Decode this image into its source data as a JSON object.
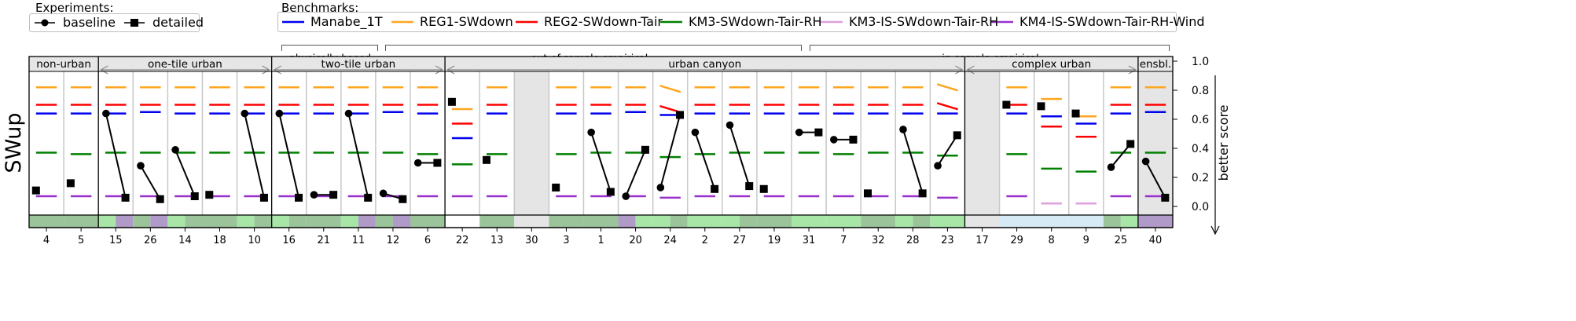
{
  "chart_data": {
    "type": "scatter",
    "ylabel": "SWup",
    "score_label": "better score",
    "ylim": [
      0,
      1
    ],
    "yticks": [
      "0.0",
      "0.2",
      "0.4",
      "0.6",
      "0.8",
      "1.0"
    ],
    "legend_experiments": {
      "title": "Experiments:",
      "items": [
        {
          "label": "baseline",
          "marker": "circle"
        },
        {
          "label": "detailed",
          "marker": "square"
        }
      ]
    },
    "legend_benchmarks": {
      "title": "Benchmarks:",
      "items": [
        {
          "label": "Manabe_1T",
          "color": "#0000ee"
        },
        {
          "label": "REG1-SWdown",
          "color": "#ffa520"
        },
        {
          "label": "REG2-SWdown-Tair",
          "color": "#ff0000"
        },
        {
          "label": "KM3-SWdown-Tair-RH",
          "color": "#008000"
        },
        {
          "label": "KM3-IS-SWdown-Tair-RH",
          "color": "#dda0dd"
        },
        {
          "label": "KM4-IS-SWdown-Tair-RH-Wind",
          "color": "#9932cc"
        }
      ],
      "groups": [
        "physically-based",
        "out-of-sample empirical",
        "in-sample empirical"
      ]
    },
    "categories": [
      {
        "name": "non-urban",
        "sites": [
          {
            "id": "4",
            "baseline": null,
            "detailed": 0.11,
            "bench": [
              0.64,
              0.82,
              0.7,
              0.37,
              null,
              0.07
            ],
            "strip": [
              "#9bc49b"
            ]
          },
          {
            "id": "5",
            "baseline": null,
            "detailed": 0.16,
            "bench": [
              0.64,
              0.82,
              0.7,
              0.36,
              null,
              0.07
            ],
            "strip": [
              "#9bc49b"
            ]
          }
        ]
      },
      {
        "name": "one-tile urban",
        "sites": [
          {
            "id": "15",
            "baseline": 0.64,
            "detailed": 0.06,
            "bench": [
              0.64,
              0.82,
              0.7,
              0.37,
              null,
              0.07
            ],
            "strip": [
              "#a8e6a8",
              "#b09ac8"
            ]
          },
          {
            "id": "26",
            "baseline": 0.28,
            "detailed": 0.05,
            "bench": [
              0.65,
              0.82,
              0.7,
              0.37,
              null,
              0.07
            ],
            "strip": [
              "#9bc49b",
              "#b09ac8"
            ]
          },
          {
            "id": "14",
            "baseline": 0.39,
            "detailed": 0.07,
            "bench": [
              0.64,
              0.82,
              0.7,
              0.37,
              null,
              0.07
            ],
            "strip": [
              "#a8e6a8",
              "#9bc49b"
            ]
          },
          {
            "id": "18",
            "baseline": null,
            "detailed": 0.08,
            "bench": [
              0.64,
              0.82,
              0.7,
              0.37,
              null,
              0.07
            ],
            "strip": [
              "#9bc49b"
            ]
          },
          {
            "id": "10",
            "baseline": 0.64,
            "detailed": 0.06,
            "bench": [
              0.64,
              0.82,
              0.7,
              0.37,
              null,
              0.07
            ],
            "strip": [
              "#a8e6a8",
              "#9bc49b"
            ]
          }
        ]
      },
      {
        "name": "two-tile urban",
        "sites": [
          {
            "id": "16",
            "baseline": 0.64,
            "detailed": 0.06,
            "bench": [
              0.64,
              0.82,
              0.7,
              0.37,
              null,
              0.07
            ],
            "strip": [
              "#a8e6a8",
              "#9bc49b"
            ]
          },
          {
            "id": "21",
            "baseline": 0.08,
            "detailed": 0.08,
            "bench": [
              0.64,
              0.82,
              0.7,
              0.37,
              null,
              0.07
            ],
            "strip": [
              "#9bc49b"
            ]
          },
          {
            "id": "11",
            "baseline": 0.64,
            "detailed": 0.06,
            "bench": [
              0.64,
              0.82,
              0.7,
              0.37,
              null,
              0.07
            ],
            "strip": [
              "#a8e6a8",
              "#b09ac8"
            ]
          },
          {
            "id": "12",
            "baseline": 0.09,
            "detailed": 0.05,
            "bench": [
              0.65,
              0.82,
              0.7,
              0.37,
              null,
              0.07
            ],
            "strip": [
              "#9bc49b",
              "#b09ac8"
            ]
          },
          {
            "id": "6",
            "baseline": 0.3,
            "detailed": 0.3,
            "bench": [
              0.64,
              0.82,
              0.7,
              0.36,
              null,
              0.07
            ],
            "strip": [
              "#9bc49b"
            ]
          }
        ]
      },
      {
        "name": "urban canyon",
        "sites": [
          {
            "id": "22",
            "baseline": null,
            "detailed": 0.72,
            "bench": [
              0.47,
              0.67,
              0.57,
              0.29,
              null,
              0.07
            ],
            "strip": [
              "#ffffff"
            ]
          },
          {
            "id": "13",
            "baseline": null,
            "detailed": 0.32,
            "bench": [
              0.64,
              0.82,
              0.7,
              0.36,
              null,
              0.07
            ],
            "strip": [
              "#9bc49b"
            ]
          },
          {
            "id": "30",
            "baseline": null,
            "detailed": null,
            "bench": null,
            "shaded": true,
            "strip": [
              "#e5e5e5"
            ]
          },
          {
            "id": "3",
            "baseline": null,
            "detailed": 0.13,
            "bench": [
              0.64,
              0.82,
              0.7,
              0.36,
              null,
              0.07
            ],
            "strip": [
              "#9bc49b"
            ]
          },
          {
            "id": "1",
            "baseline": 0.51,
            "detailed": 0.1,
            "bench": [
              0.64,
              0.82,
              0.7,
              0.37,
              null,
              0.07
            ],
            "strip": [
              "#9bc49b"
            ]
          },
          {
            "id": "20",
            "baseline": 0.07,
            "detailed": 0.39,
            "bench": [
              0.65,
              0.82,
              0.7,
              0.37,
              null,
              0.07
            ],
            "strip": [
              "#b09ac8",
              "#a8e6a8"
            ]
          },
          {
            "id": "24",
            "baseline": 0.13,
            "detailed": 0.63,
            "bench": [
              0.63,
              0.81,
              0.67,
              0.34,
              null,
              0.06
            ],
            "strip": [
              "#a8e6a8",
              "#9bc49b"
            ]
          },
          {
            "id": "2",
            "baseline": 0.51,
            "detailed": 0.12,
            "bench": [
              0.64,
              0.82,
              0.7,
              0.36,
              null,
              0.07
            ],
            "strip": [
              "#a8e6a8"
            ]
          },
          {
            "id": "27",
            "baseline": 0.56,
            "detailed": 0.14,
            "bench": [
              0.64,
              0.82,
              0.7,
              0.37,
              null,
              0.07
            ],
            "strip": [
              "#a8e6a8",
              "#9bc49b"
            ]
          },
          {
            "id": "19",
            "baseline": null,
            "detailed": 0.12,
            "bench": [
              0.64,
              0.82,
              0.7,
              0.37,
              null,
              0.07
            ],
            "strip": [
              "#9bc49b"
            ]
          },
          {
            "id": "31",
            "baseline": 0.51,
            "detailed": 0.51,
            "bench": [
              0.64,
              0.82,
              0.7,
              0.37,
              null,
              0.07
            ],
            "strip": [
              "#a8e6a8"
            ]
          },
          {
            "id": "7",
            "baseline": 0.46,
            "detailed": 0.46,
            "bench": [
              0.64,
              0.82,
              0.7,
              0.36,
              null,
              0.07
            ],
            "strip": [
              "#a8e6a8"
            ]
          },
          {
            "id": "32",
            "baseline": null,
            "detailed": 0.09,
            "bench": [
              0.64,
              0.82,
              0.7,
              0.37,
              null,
              0.07
            ],
            "strip": [
              "#9bc49b"
            ]
          },
          {
            "id": "28",
            "baseline": 0.53,
            "detailed": 0.09,
            "bench": [
              0.64,
              0.82,
              0.7,
              0.37,
              null,
              0.07
            ],
            "strip": [
              "#a8e6a8",
              "#9bc49b"
            ]
          },
          {
            "id": "23",
            "baseline": 0.28,
            "detailed": 0.49,
            "bench": [
              0.64,
              0.82,
              0.69,
              0.35,
              null,
              0.06
            ],
            "strip": [
              "#a8e6a8"
            ]
          }
        ]
      },
      {
        "name": "complex urban",
        "sites": [
          {
            "id": "17",
            "baseline": null,
            "detailed": null,
            "bench": null,
            "shaded": true,
            "strip": [
              "#e5e5e5"
            ]
          },
          {
            "id": "29",
            "baseline": null,
            "detailed": 0.7,
            "bench": [
              0.64,
              0.82,
              0.7,
              0.36,
              null,
              0.07
            ],
            "strip": [
              "#d6eaf5"
            ]
          },
          {
            "id": "8",
            "baseline": null,
            "detailed": 0.69,
            "bench": [
              0.62,
              0.74,
              0.55,
              0.26,
              0.02,
              null
            ],
            "strip": [
              "#d6eaf5"
            ]
          },
          {
            "id": "9",
            "baseline": null,
            "detailed": 0.64,
            "bench": [
              0.57,
              0.62,
              0.48,
              0.24,
              0.02,
              null
            ],
            "strip": [
              "#d6eaf5"
            ]
          },
          {
            "id": "25",
            "baseline": 0.27,
            "detailed": 0.43,
            "bench": [
              0.64,
              0.82,
              0.7,
              0.37,
              null,
              0.07
            ],
            "strip": [
              "#9bc49b",
              "#a8e6a8"
            ]
          }
        ]
      },
      {
        "name": "ensbl.",
        "sites": [
          {
            "id": "40",
            "baseline": 0.31,
            "detailed": 0.06,
            "bench": [
              0.65,
              0.82,
              0.7,
              0.37,
              null,
              0.07
            ],
            "shaded": true,
            "strip": [
              "#b09ac8"
            ]
          }
        ]
      }
    ]
  }
}
